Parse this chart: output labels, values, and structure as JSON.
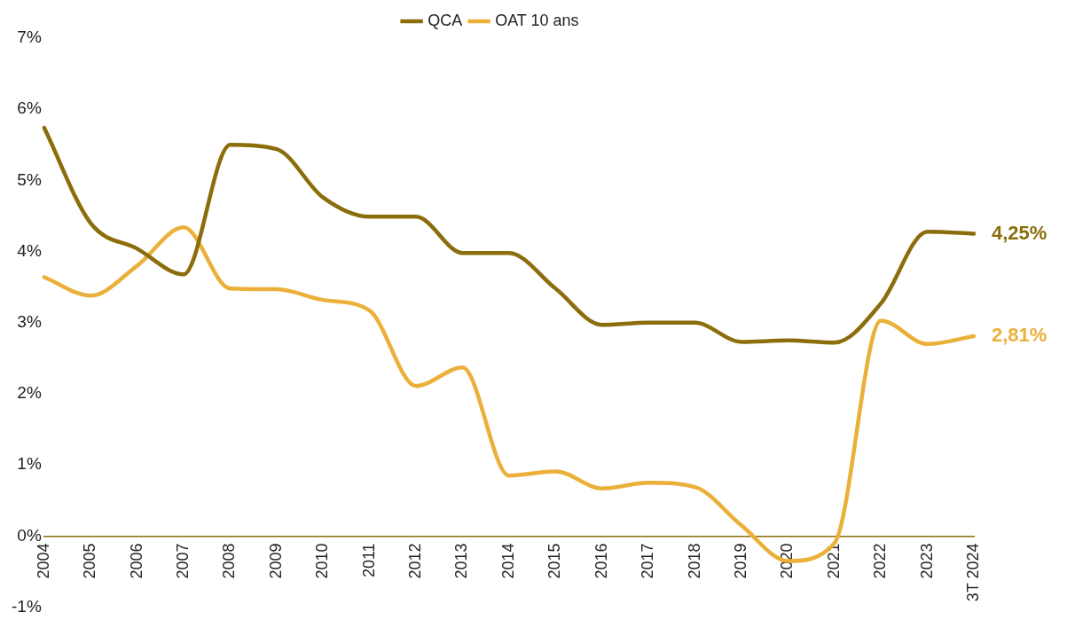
{
  "chart_data": {
    "type": "line",
    "categories": [
      "2004",
      "2005",
      "2006",
      "2007",
      "2008",
      "2009",
      "2010",
      "2011",
      "2012",
      "2013",
      "2014",
      "2015",
      "2016",
      "2017",
      "2018",
      "2019",
      "2020",
      "2021",
      "2022",
      "2023",
      "3T 2024"
    ],
    "series": [
      {
        "name": "QCA",
        "color": "#8c6d0b",
        "values": [
          5.74,
          4.4,
          4.04,
          3.68,
          5.5,
          5.44,
          4.76,
          4.49,
          4.49,
          3.98,
          3.98,
          3.48,
          2.97,
          3.0,
          3.0,
          2.73,
          2.75,
          2.72,
          3.27,
          4.28,
          4.25
        ],
        "value_labels": [
          null,
          null,
          null,
          null,
          null,
          null,
          null,
          null,
          null,
          null,
          null,
          null,
          null,
          null,
          null,
          null,
          null,
          null,
          null,
          null,
          "4,25%"
        ]
      },
      {
        "name": "OAT 10 ans",
        "color": "#ebb03a",
        "values": [
          3.64,
          3.38,
          3.8,
          4.34,
          3.48,
          3.47,
          3.32,
          3.17,
          2.11,
          2.37,
          0.85,
          0.91,
          0.67,
          0.75,
          0.69,
          0.15,
          -0.35,
          -0.1,
          3.03,
          2.7,
          2.81
        ],
        "value_labels": [
          null,
          null,
          null,
          null,
          null,
          null,
          null,
          null,
          null,
          null,
          null,
          null,
          null,
          null,
          null,
          null,
          null,
          null,
          null,
          null,
          "2,81%"
        ]
      }
    ],
    "ylim": [
      -1,
      7
    ],
    "yticks": [
      {
        "value": -1,
        "label": "-1%"
      },
      {
        "value": 0,
        "label": "0%"
      },
      {
        "value": 1,
        "label": "1%"
      },
      {
        "value": 2,
        "label": "2%"
      },
      {
        "value": 3,
        "label": "3%"
      },
      {
        "value": 4,
        "label": "4%"
      },
      {
        "value": 5,
        "label": "5%"
      },
      {
        "value": 6,
        "label": "6%"
      },
      {
        "value": 7,
        "label": "7%"
      }
    ],
    "grid": false,
    "legend": "top",
    "marker": "none",
    "line_style": "solid"
  }
}
